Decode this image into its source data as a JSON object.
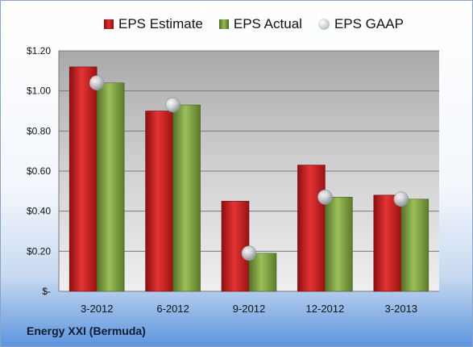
{
  "legend": {
    "estimate": "EPS Estimate",
    "actual": "EPS Actual",
    "gaap": "EPS GAAP"
  },
  "company": "Energy XXI (Bermuda)",
  "colors": {
    "estimate": "#d42a2a",
    "actual": "#8fb24d",
    "gaap": "#b9c0c8",
    "plot_background": "#c4c4c4"
  },
  "chart_data": {
    "type": "bar",
    "title": "",
    "xlabel": "",
    "ylabel": "",
    "categories": [
      "3-2012",
      "6-2012",
      "9-2012",
      "12-2012",
      "3-2013"
    ],
    "series": [
      {
        "name": "EPS Estimate",
        "type": "bar",
        "values": [
          1.12,
          0.9,
          0.45,
          0.63,
          0.48
        ]
      },
      {
        "name": "EPS Actual",
        "type": "bar",
        "values": [
          1.04,
          0.93,
          0.19,
          0.47,
          0.46
        ]
      },
      {
        "name": "EPS GAAP",
        "type": "scatter",
        "values": [
          1.04,
          0.93,
          0.19,
          0.47,
          0.46
        ]
      }
    ],
    "ylim": [
      0,
      1.2
    ],
    "yticks": [
      0,
      0.2,
      0.4,
      0.6,
      0.8,
      1.0,
      1.2
    ],
    "ytick_labels": [
      "$-",
      "$0.20",
      "$0.40",
      "$0.60",
      "$0.80",
      "$1.00",
      "$1.20"
    ],
    "grid": true,
    "legend_position": "top"
  }
}
